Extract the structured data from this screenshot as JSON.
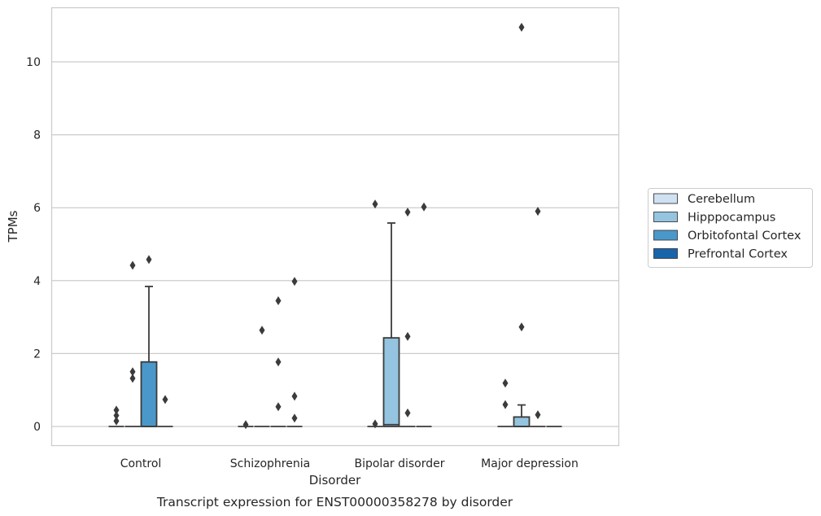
{
  "chart_data": {
    "type": "box",
    "caption": "Transcript expression for ENST00000358278 by disorder",
    "xlabel": "Disorder",
    "ylabel": "TPMs",
    "ylim": [
      -0.52,
      11.5
    ],
    "yticks": [
      0,
      2,
      4,
      6,
      8,
      10
    ],
    "grid": "horizontal",
    "legend_position": "right",
    "categories": [
      "Control",
      "Schizophrenia",
      "Bipolar disorder",
      "Major depression"
    ],
    "series": [
      {
        "name": "Cerebellum",
        "color": "#d0e1f2"
      },
      {
        "name": "Hipppocampus",
        "color": "#94c4df"
      },
      {
        "name": "Orbitofontal Cortex",
        "color": "#4a98c9"
      },
      {
        "name": "Prefrontal Cortex",
        "color": "#1764ab"
      }
    ],
    "boxes": [
      {
        "category": 0,
        "series": 0,
        "q1": 0,
        "median": 0,
        "q3": 0,
        "whisker_low": 0,
        "whisker_high": 0,
        "outliers": [
          0.45,
          0.3,
          0.15
        ]
      },
      {
        "category": 0,
        "series": 1,
        "q1": 0,
        "median": 0,
        "q3": 0,
        "whisker_low": 0,
        "whisker_high": 0,
        "outliers": [
          4.42,
          1.5,
          1.32
        ]
      },
      {
        "category": 0,
        "series": 2,
        "q1": 0,
        "median": 0,
        "q3": 1.77,
        "whisker_low": 0,
        "whisker_high": 3.84,
        "outliers": [
          4.58
        ]
      },
      {
        "category": 0,
        "series": 3,
        "q1": 0,
        "median": 0,
        "q3": 0,
        "whisker_low": 0,
        "whisker_high": 0,
        "outliers": [
          0.74
        ]
      },
      {
        "category": 1,
        "series": 0,
        "q1": 0,
        "median": 0,
        "q3": 0,
        "whisker_low": 0,
        "whisker_high": 0,
        "outliers": [
          0.05
        ]
      },
      {
        "category": 1,
        "series": 1,
        "q1": 0,
        "median": 0,
        "q3": 0,
        "whisker_low": 0,
        "whisker_high": 0,
        "outliers": [
          2.64
        ]
      },
      {
        "category": 1,
        "series": 2,
        "q1": 0,
        "median": 0,
        "q3": 0,
        "whisker_low": 0,
        "whisker_high": 0,
        "outliers": [
          3.45,
          1.77,
          0.54
        ]
      },
      {
        "category": 1,
        "series": 3,
        "q1": 0,
        "median": 0,
        "q3": 0,
        "whisker_low": 0,
        "whisker_high": 0,
        "outliers": [
          3.98,
          0.83,
          0.23
        ]
      },
      {
        "category": 2,
        "series": 0,
        "q1": 0,
        "median": 0,
        "q3": 0,
        "whisker_low": 0,
        "whisker_high": 0,
        "outliers": [
          6.1,
          0.07
        ]
      },
      {
        "category": 2,
        "series": 1,
        "q1": 0,
        "median": 0.05,
        "q3": 2.43,
        "whisker_low": 0,
        "whisker_high": 5.58,
        "outliers": []
      },
      {
        "category": 2,
        "series": 2,
        "q1": 0,
        "median": 0,
        "q3": 0,
        "whisker_low": 0,
        "whisker_high": 0,
        "outliers": [
          5.88,
          2.47,
          0.37
        ]
      },
      {
        "category": 2,
        "series": 3,
        "q1": 0,
        "median": 0,
        "q3": 0,
        "whisker_low": 0,
        "whisker_high": 0,
        "outliers": [
          6.02
        ]
      },
      {
        "category": 3,
        "series": 0,
        "q1": 0,
        "median": 0,
        "q3": 0,
        "whisker_low": 0,
        "whisker_high": 0,
        "outliers": [
          1.19,
          0.6
        ]
      },
      {
        "category": 3,
        "series": 1,
        "q1": 0,
        "median": 0,
        "q3": 0.26,
        "whisker_low": 0,
        "whisker_high": 0.59,
        "outliers": [
          10.95,
          2.73
        ]
      },
      {
        "category": 3,
        "series": 2,
        "q1": 0,
        "median": 0,
        "q3": 0,
        "whisker_low": 0,
        "whisker_high": 0,
        "outliers": [
          5.9,
          0.32
        ]
      },
      {
        "category": 3,
        "series": 3,
        "q1": 0,
        "median": 0,
        "q3": 0,
        "whisker_low": 0,
        "whisker_high": 0,
        "outliers": []
      }
    ]
  }
}
